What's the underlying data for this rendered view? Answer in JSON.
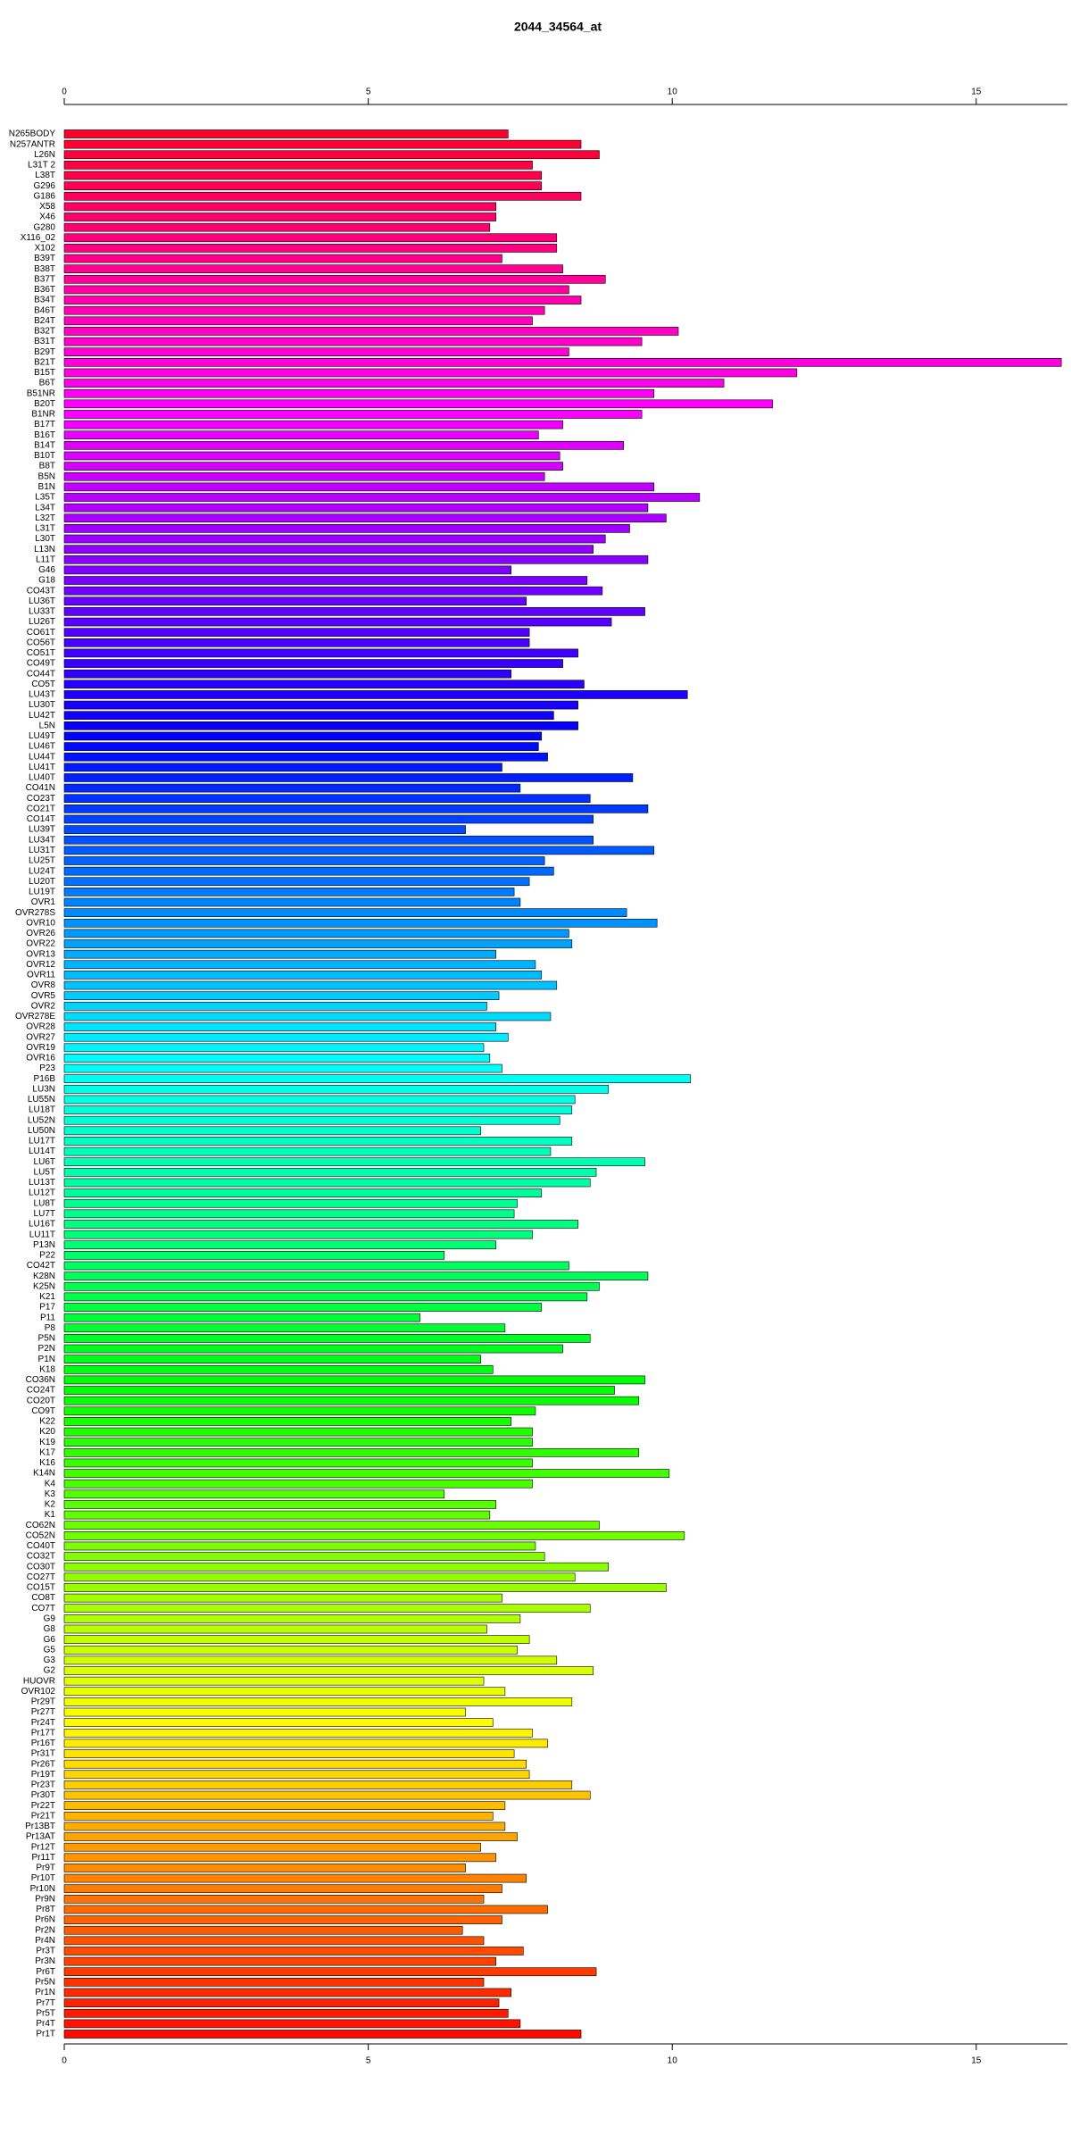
{
  "chart_data": {
    "type": "barh",
    "title": "2044_34564_at",
    "categories": [
      "N265BODY",
      "N257ANTR",
      "L26N",
      "L31T 2",
      "L38T",
      "G296",
      "G186",
      "X58",
      "X46",
      "G280",
      "X116_02",
      "X102",
      "B39T",
      "B38T",
      "B37T",
      "B36T",
      "B34T",
      "B46T",
      "B24T",
      "B32T",
      "B31T",
      "B29T",
      "B21T",
      "B15T",
      "B6T",
      "B51NR",
      "B20T",
      "B1NR",
      "B17T",
      "B16T",
      "B14T",
      "B10T",
      "B8T",
      "B5N",
      "B1N",
      "L35T",
      "L34T",
      "L32T",
      "L31T",
      "L30T",
      "L13N",
      "L11T",
      "G46",
      "G18",
      "CO43T",
      "LU36T",
      "LU33T",
      "LU26T",
      "CO61T",
      "CO56T",
      "CO51T",
      "CO49T",
      "CO44T",
      "CO5T",
      "LU43T",
      "LU30T",
      "LU42T",
      "L5N",
      "LU49T",
      "LU46T",
      "LU44T",
      "LU41T",
      "LU40T",
      "CO41N",
      "CO23T",
      "CO21T",
      "CO14T",
      "LU39T",
      "LU34T",
      "LU31T",
      "LU25T",
      "LU24T",
      "LU20T",
      "LU19T",
      "OVR1",
      "OVR278S",
      "OVR10",
      "OVR26",
      "OVR22",
      "OVR13",
      "OVR12",
      "OVR11",
      "OVR8",
      "OVR5",
      "OVR2",
      "OVR278E",
      "OVR28",
      "OVR27",
      "OVR19",
      "OVR16",
      "P23",
      "P16B",
      "LU3N",
      "LU55N",
      "LU18T",
      "LU52N",
      "LU50N",
      "LU17T",
      "LU14T",
      "LU6T",
      "LU5T",
      "LU13T",
      "LU12T",
      "LU8T",
      "LU7T",
      "LU16T",
      "LU11T",
      "P13N",
      "P22",
      "CO42T",
      "K28N",
      "K25N",
      "K21",
      "P17",
      "P11",
      "P8",
      "P5N",
      "P2N",
      "P1N",
      "K18",
      "CO36N",
      "CO24T",
      "CO20T",
      "CO9T",
      "K22",
      "K20",
      "K19",
      "K17",
      "K16",
      "K14N",
      "K4",
      "K3",
      "K2",
      "K1",
      "CO62N",
      "CO52N",
      "CO40T",
      "CO32T",
      "CO30T",
      "CO27T",
      "CO15T",
      "CO8T",
      "CO7T",
      "G9",
      "G8",
      "G6",
      "G5",
      "G3",
      "G2",
      "HUOVR",
      "OVR102",
      "Pr29T",
      "Pr27T",
      "Pr24T",
      "Pr17T",
      "Pr16T",
      "Pr31T",
      "Pr26T",
      "Pr19T",
      "Pr23T",
      "Pr30T",
      "Pr22T",
      "Pr21T",
      "Pr13BT",
      "Pr13AT",
      "Pr12T",
      "Pr11T",
      "Pr9T",
      "Pr10T",
      "Pr10N",
      "Pr9N",
      "Pr8T",
      "Pr6N",
      "Pr2N",
      "Pr4N",
      "Pr3T",
      "Pr3N",
      "Pr6T",
      "Pr5N",
      "Pr1N",
      "Pr7T",
      "Pr5T",
      "Pr4T",
      "Pr1T"
    ],
    "values": [
      7.3,
      8.5,
      8.8,
      7.7,
      7.85,
      7.85,
      8.5,
      7.1,
      7.1,
      7.0,
      8.1,
      8.1,
      7.2,
      8.2,
      8.9,
      8.3,
      8.5,
      7.9,
      7.7,
      10.1,
      9.5,
      8.3,
      16.4,
      12.05,
      10.85,
      9.7,
      11.65,
      9.5,
      8.2,
      7.8,
      9.2,
      8.15,
      8.2,
      7.9,
      9.7,
      10.45,
      9.6,
      9.9,
      9.3,
      8.9,
      8.7,
      9.6,
      7.35,
      8.6,
      8.85,
      7.6,
      9.55,
      9.0,
      7.65,
      7.65,
      8.45,
      8.2,
      7.35,
      8.55,
      10.25,
      8.45,
      8.05,
      8.45,
      7.85,
      7.8,
      7.95,
      7.2,
      9.35,
      7.5,
      8.65,
      9.6,
      8.7,
      6.6,
      8.7,
      9.7,
      7.9,
      8.05,
      7.65,
      7.4,
      7.5,
      9.25,
      9.75,
      8.3,
      8.35,
      7.1,
      7.75,
      7.85,
      8.1,
      7.15,
      6.95,
      8.0,
      7.1,
      7.3,
      6.9,
      7.0,
      7.2,
      10.3,
      8.95,
      8.4,
      8.35,
      8.15,
      6.85,
      8.35,
      8.0,
      9.55,
      8.75,
      8.65,
      7.85,
      7.45,
      7.4,
      8.45,
      7.7,
      7.1,
      6.25,
      8.3,
      9.6,
      8.8,
      8.6,
      7.85,
      5.85,
      7.25,
      8.65,
      8.2,
      6.85,
      7.05,
      9.55,
      9.05,
      9.45,
      7.75,
      7.35,
      7.7,
      7.7,
      9.45,
      7.7,
      9.95,
      7.7,
      6.25,
      7.1,
      7.0,
      8.8,
      10.2,
      7.75,
      7.9,
      8.95,
      8.4,
      9.9,
      7.2,
      8.65,
      7.5,
      6.95,
      7.65,
      7.45,
      8.1,
      8.7,
      6.9,
      7.25,
      8.35,
      6.6,
      7.05,
      7.7,
      7.95,
      7.4,
      7.6,
      7.65,
      8.35,
      8.65,
      7.25,
      7.05,
      7.25,
      7.45,
      6.85,
      7.1,
      6.6,
      7.6,
      7.2,
      6.9,
      7.95,
      7.2,
      6.55,
      6.9,
      7.55,
      7.1,
      8.75,
      6.9,
      7.35,
      7.15,
      7.3,
      7.5,
      8.5
    ],
    "colors": [
      "hsl(350 100% 50%)",
      "hsl(348.1 100% 50%)",
      "hsl(346.2 100% 50%)",
      "hsl(344.3 100% 50%)",
      "hsl(342.4 100% 50%)",
      "hsl(340.5 100% 50%)",
      "hsl(338.6 100% 50%)",
      "hsl(336.7 100% 50%)",
      "hsl(334.8 100% 50%)",
      "hsl(332.9 100% 50%)",
      "hsl(331 100% 50%)",
      "hsl(329.1 100% 50%)",
      "hsl(327.2 100% 50%)",
      "hsl(325.3 100% 50%)",
      "hsl(323.4 100% 50%)",
      "hsl(321.5 100% 50%)",
      "hsl(319.6 100% 50%)",
      "hsl(317.7 100% 50%)",
      "hsl(315.8 100% 50%)",
      "hsl(313.9 100% 50%)",
      "hsl(312 100% 50%)",
      "hsl(310.1 100% 50%)",
      "hsl(308.2 100% 50%)",
      "hsl(306.3 100% 50%)",
      "hsl(304.4 100% 50%)",
      "hsl(302.5 100% 50%)",
      "hsl(300.6 100% 50%)",
      "hsl(298.7 100% 50%)",
      "hsl(296.8 100% 50%)",
      "hsl(294.9 100% 50%)",
      "hsl(293 100% 50%)",
      "hsl(291.1 100% 50%)",
      "hsl(289.2 100% 50%)",
      "hsl(287.3 100% 50%)",
      "hsl(285.4 100% 50%)",
      "hsl(283.5 100% 50%)",
      "hsl(281.6 100% 50%)",
      "hsl(279.7 100% 50%)",
      "hsl(277.8 100% 50%)",
      "hsl(275.9 100% 50%)",
      "hsl(274 100% 50%)",
      "hsl(272.1 100% 50%)",
      "hsl(270.2 100% 50%)",
      "hsl(268.3 100% 50%)",
      "hsl(266.4 100% 50%)",
      "hsl(264.5 100% 50%)",
      "hsl(262.6 100% 50%)",
      "hsl(260.7 100% 50%)",
      "hsl(258.8 100% 50%)",
      "hsl(256.9 100% 50%)",
      "hsl(255 100% 50%)",
      "hsl(253.1 100% 50%)",
      "hsl(251.2 100% 50%)",
      "hsl(249.3 100% 50%)",
      "hsl(247.4 100% 50%)",
      "hsl(245.5 100% 50%)",
      "hsl(243.6 100% 50%)",
      "hsl(241.7 100% 50%)",
      "hsl(239.8 100% 50%)",
      "hsl(237.9 100% 50%)",
      "hsl(236 100% 50%)",
      "hsl(234.1 100% 50%)",
      "hsl(232.2 100% 50%)",
      "hsl(230.3 100% 50%)",
      "hsl(228.4 100% 50%)",
      "hsl(226.5 100% 50%)",
      "hsl(224.6 100% 50%)",
      "hsl(222.7 100% 50%)",
      "hsl(220.8 100% 50%)",
      "hsl(218.9 100% 50%)",
      "hsl(217 100% 50%)",
      "hsl(215.1 100% 50%)",
      "hsl(213.2 100% 50%)",
      "hsl(211.3 100% 50%)",
      "hsl(209.4 100% 50%)",
      "hsl(207.5 100% 50%)",
      "hsl(205.6 100% 50%)",
      "hsl(203.7 100% 50%)",
      "hsl(201.8 100% 50%)",
      "hsl(199.9 100% 50%)",
      "hsl(198 100% 50%)",
      "hsl(196.1 100% 50%)",
      "hsl(194.2 100% 50%)",
      "hsl(192.3 100% 50%)",
      "hsl(190.4 100% 50%)",
      "hsl(188.5 100% 50%)",
      "hsl(186.6 100% 50%)",
      "hsl(184.7 100% 50%)",
      "hsl(182.8 100% 50%)",
      "hsl(180.9 100% 50%)",
      "hsl(179 100% 50%)",
      "hsl(177.1 100% 50%)",
      "hsl(175.2 100% 50%)",
      "hsl(173.3 100% 50%)",
      "hsl(171.4 100% 50%)",
      "hsl(169.5 100% 50%)",
      "hsl(167.6 100% 50%)",
      "hsl(165.7 100% 50%)",
      "hsl(163.8 100% 50%)",
      "hsl(161.9 100% 50%)",
      "hsl(160 100% 50%)",
      "hsl(158.1 100% 50%)",
      "hsl(156.2 100% 50%)",
      "hsl(154.3 100% 50%)",
      "hsl(152.4 100% 50%)",
      "hsl(150.5 100% 50%)",
      "hsl(148.6 100% 50%)",
      "hsl(146.7 100% 50%)",
      "hsl(144.8 100% 50%)",
      "hsl(142.9 100% 50%)",
      "hsl(141 100% 50%)",
      "hsl(139.1 100% 50%)",
      "hsl(137.2 100% 50%)",
      "hsl(135.3 100% 50%)",
      "hsl(133.4 100% 50%)",
      "hsl(131.5 100% 50%)",
      "hsl(129.6 100% 50%)",
      "hsl(127.7 100% 50%)",
      "hsl(125.8 100% 50%)",
      "hsl(123.9 100% 50%)",
      "hsl(122 100% 50%)",
      "hsl(120.1 100% 50%)",
      "hsl(118.2 100% 50%)",
      "hsl(116.3 100% 50%)",
      "hsl(114.4 100% 50%)",
      "hsl(112.5 100% 50%)",
      "hsl(110.6 100% 50%)",
      "hsl(108.7 100% 50%)",
      "hsl(106.8 100% 50%)",
      "hsl(104.9 100% 50%)",
      "hsl(103 100% 50%)",
      "hsl(101.1 100% 50%)",
      "hsl(99.2 100% 50%)",
      "hsl(97.3 100% 50%)",
      "hsl(95.4 100% 50%)",
      "hsl(93.5 100% 50%)",
      "hsl(91.6 100% 50%)",
      "hsl(89.7 100% 50%)",
      "hsl(87.8 100% 50%)",
      "hsl(85.9 100% 50%)",
      "hsl(84 100% 50%)",
      "hsl(82.1 100% 50%)",
      "hsl(80.2 100% 50%)",
      "hsl(78.3 100% 50%)",
      "hsl(76.4 100% 50%)",
      "hsl(74.5 100% 50%)",
      "hsl(72.6 100% 50%)",
      "hsl(70.7 100% 50%)",
      "hsl(68.8 100% 50%)",
      "hsl(66.9 100% 50%)",
      "hsl(65 100% 50%)",
      "hsl(63.1 100% 50%)",
      "hsl(61.2 100% 50%)",
      "hsl(59.3 100% 50%)",
      "hsl(57.4 100% 50%)",
      "hsl(55.5 100% 50%)",
      "hsl(53.6 100% 50%)",
      "hsl(51.7 100% 50%)",
      "hsl(49.8 100% 50%)",
      "hsl(47.9 100% 50%)",
      "hsl(46 100% 50%)",
      "hsl(44.1 100% 50%)",
      "hsl(42.2 100% 50%)",
      "hsl(40.3 100% 50%)",
      "hsl(38.4 100% 50%)",
      "hsl(36.5 100% 50%)",
      "hsl(34.6 100% 50%)",
      "hsl(32.7 100% 50%)",
      "hsl(30.8 100% 50%)",
      "hsl(28.9 100% 50%)",
      "hsl(27 100% 50%)",
      "hsl(25.1 100% 50%)",
      "hsl(23.2 100% 50%)",
      "hsl(21.3 100% 50%)",
      "hsl(19.4 100% 50%)",
      "hsl(17.5 100% 50%)",
      "hsl(15.6 100% 50%)",
      "hsl(13.7 100% 50%)",
      "hsl(11.8 100% 50%)",
      "hsl(9.9 100% 50%)",
      "hsl(8 100% 50%)",
      "hsl(6.1 100% 50%)",
      "hsl(4.2 100% 50%)",
      "hsl(2.3 100% 50%)"
    ],
    "xlim": [
      0,
      16.5
    ],
    "xticks": [
      0,
      5,
      10,
      15
    ]
  }
}
